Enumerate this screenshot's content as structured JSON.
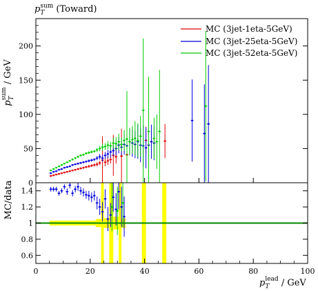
{
  "title_main": "p",
  "title_sub": "T",
  "title_sup": "sum",
  "title_suffix": " (Toward)",
  "colors": {
    "mc1": "#dd0000",
    "mc2": "#0000dd",
    "mc3": "#00cc00",
    "ratio_band": "#ffff00",
    "ratio_line": "#008800"
  },
  "chart_data": [
    {
      "type": "scatter",
      "ylabel_main": "p",
      "ylabel_sub": "T",
      "ylabel_sup": "sum",
      "ylabel_unit": " / GeV",
      "xlim": [
        0,
        100
      ],
      "ylim": [
        0,
        240
      ],
      "yticks": [
        0,
        50,
        100,
        150,
        200
      ],
      "legend_position": "top-right",
      "series": [
        {
          "name": "MC (3jet-1eta-5GeV)",
          "color": "#dd0000",
          "points": [
            {
              "x": 5.5,
              "y": 10,
              "err": 1
            },
            {
              "x": 6.5,
              "y": 11,
              "err": 1
            },
            {
              "x": 7.5,
              "y": 12,
              "err": 1
            },
            {
              "x": 8.5,
              "y": 13,
              "err": 1
            },
            {
              "x": 9.5,
              "y": 14,
              "err": 1
            },
            {
              "x": 10.5,
              "y": 15,
              "err": 1
            },
            {
              "x": 11.5,
              "y": 16,
              "err": 1
            },
            {
              "x": 12.5,
              "y": 17,
              "err": 1
            },
            {
              "x": 13.5,
              "y": 18,
              "err": 1
            },
            {
              "x": 14.5,
              "y": 19,
              "err": 1
            },
            {
              "x": 15.5,
              "y": 20,
              "err": 1.5
            },
            {
              "x": 16.5,
              "y": 21,
              "err": 1.5
            },
            {
              "x": 17.5,
              "y": 22,
              "err": 1.5
            },
            {
              "x": 18.5,
              "y": 23,
              "err": 1.5
            },
            {
              "x": 19.5,
              "y": 24,
              "err": 2
            },
            {
              "x": 20.5,
              "y": 25,
              "err": 2
            },
            {
              "x": 21.5,
              "y": 26,
              "err": 2
            },
            {
              "x": 22.5,
              "y": 27,
              "err": 3
            },
            {
              "x": 23.5,
              "y": 29,
              "err": 3
            },
            {
              "x": 24.5,
              "y": 33,
              "err": 35
            },
            {
              "x": 25.5,
              "y": 30,
              "err": 6
            },
            {
              "x": 26.5,
              "y": 32,
              "err": 6
            },
            {
              "x": 27.5,
              "y": 34,
              "err": 6
            },
            {
              "x": 28.5,
              "y": 40,
              "err": 30
            },
            {
              "x": 29.5,
              "y": 38,
              "err": 10
            },
            {
              "x": 31.5,
              "y": 39,
              "err": 40
            },
            {
              "x": 33.5,
              "y": 41,
              "err": 12
            },
            {
              "x": 40.5,
              "y": 62,
              "err": 20
            },
            {
              "x": 47.5,
              "y": 61,
              "err": 25
            }
          ]
        },
        {
          "name": "MC (3jet-25eta-5GeV)",
          "color": "#0000dd",
          "points": [
            {
              "x": 5.5,
              "y": 14,
              "err": 1
            },
            {
              "x": 6.5,
              "y": 16,
              "err": 1
            },
            {
              "x": 7.5,
              "y": 17,
              "err": 1
            },
            {
              "x": 8.5,
              "y": 19,
              "err": 1
            },
            {
              "x": 9.5,
              "y": 20,
              "err": 1
            },
            {
              "x": 10.5,
              "y": 22,
              "err": 1
            },
            {
              "x": 11.5,
              "y": 23,
              "err": 1
            },
            {
              "x": 12.5,
              "y": 24,
              "err": 1
            },
            {
              "x": 13.5,
              "y": 26,
              "err": 1
            },
            {
              "x": 14.5,
              "y": 27,
              "err": 1
            },
            {
              "x": 15.5,
              "y": 28,
              "err": 1.5
            },
            {
              "x": 16.5,
              "y": 29,
              "err": 1.5
            },
            {
              "x": 17.5,
              "y": 30,
              "err": 1.5
            },
            {
              "x": 18.5,
              "y": 31,
              "err": 1.5
            },
            {
              "x": 19.5,
              "y": 32,
              "err": 2
            },
            {
              "x": 20.5,
              "y": 33,
              "err": 2
            },
            {
              "x": 21.5,
              "y": 34,
              "err": 2
            },
            {
              "x": 22.5,
              "y": 36,
              "err": 3
            },
            {
              "x": 23.5,
              "y": 38,
              "err": 4
            },
            {
              "x": 24.5,
              "y": 36,
              "err": 5
            },
            {
              "x": 25.5,
              "y": 40,
              "err": 5
            },
            {
              "x": 26.5,
              "y": 42,
              "err": 6
            },
            {
              "x": 27.5,
              "y": 45,
              "err": 8
            },
            {
              "x": 28.5,
              "y": 47,
              "err": 8
            },
            {
              "x": 29.5,
              "y": 50,
              "err": 10
            },
            {
              "x": 30.5,
              "y": 55,
              "err": 12
            },
            {
              "x": 31.5,
              "y": 52,
              "err": 12
            },
            {
              "x": 32.5,
              "y": 56,
              "err": 15
            },
            {
              "x": 33.5,
              "y": 54,
              "err": 15
            },
            {
              "x": 34.5,
              "y": 60,
              "err": 20
            },
            {
              "x": 35.5,
              "y": 58,
              "err": 20
            },
            {
              "x": 36.5,
              "y": 56,
              "err": 20
            },
            {
              "x": 37.5,
              "y": 60,
              "err": 25
            },
            {
              "x": 38.5,
              "y": 55,
              "err": 25
            },
            {
              "x": 39.5,
              "y": 54,
              "err": 30
            },
            {
              "x": 40.5,
              "y": 51,
              "err": 30
            },
            {
              "x": 41.5,
              "y": 55,
              "err": 20
            },
            {
              "x": 42.5,
              "y": 60,
              "err": 25
            },
            {
              "x": 43.5,
              "y": 58,
              "err": 25
            },
            {
              "x": 57.5,
              "y": 91,
              "err": 60
            },
            {
              "x": 62.0,
              "y": 72,
              "err": 72
            },
            {
              "x": 63.5,
              "y": 86,
              "err": 86
            }
          ]
        },
        {
          "name": "MC (3jet-52eta-5GeV)",
          "color": "#00cc00",
          "points": [
            {
              "x": 5.5,
              "y": 18,
              "err": 1
            },
            {
              "x": 6.5,
              "y": 20,
              "err": 1
            },
            {
              "x": 7.5,
              "y": 22,
              "err": 1
            },
            {
              "x": 8.5,
              "y": 24,
              "err": 1
            },
            {
              "x": 9.5,
              "y": 26,
              "err": 1
            },
            {
              "x": 10.5,
              "y": 28,
              "err": 1
            },
            {
              "x": 11.5,
              "y": 30,
              "err": 1
            },
            {
              "x": 12.5,
              "y": 32,
              "err": 1
            },
            {
              "x": 13.5,
              "y": 34,
              "err": 1
            },
            {
              "x": 14.5,
              "y": 36,
              "err": 1
            },
            {
              "x": 15.5,
              "y": 38,
              "err": 1.5
            },
            {
              "x": 16.5,
              "y": 40,
              "err": 1.5
            },
            {
              "x": 17.5,
              "y": 41,
              "err": 1.5
            },
            {
              "x": 18.5,
              "y": 43,
              "err": 1.5
            },
            {
              "x": 19.5,
              "y": 44,
              "err": 2
            },
            {
              "x": 20.5,
              "y": 45,
              "err": 2
            },
            {
              "x": 21.5,
              "y": 46,
              "err": 2
            },
            {
              "x": 22.5,
              "y": 48,
              "err": 3
            },
            {
              "x": 23.5,
              "y": 50,
              "err": 4
            },
            {
              "x": 24.5,
              "y": 52,
              "err": 5
            },
            {
              "x": 25.5,
              "y": 53,
              "err": 5
            },
            {
              "x": 26.5,
              "y": 55,
              "err": 6
            },
            {
              "x": 27.5,
              "y": 54,
              "err": 6
            },
            {
              "x": 28.5,
              "y": 58,
              "err": 8
            },
            {
              "x": 29.5,
              "y": 57,
              "err": 10
            },
            {
              "x": 30.5,
              "y": 60,
              "err": 12
            },
            {
              "x": 31.5,
              "y": 56,
              "err": 10
            },
            {
              "x": 32.5,
              "y": 62,
              "err": 15
            },
            {
              "x": 33.5,
              "y": 64,
              "err": 70
            },
            {
              "x": 34.5,
              "y": 60,
              "err": 20
            },
            {
              "x": 35.5,
              "y": 63,
              "err": 20
            },
            {
              "x": 36.5,
              "y": 65,
              "err": 25
            },
            {
              "x": 37.5,
              "y": 62,
              "err": 25
            },
            {
              "x": 38.5,
              "y": 68,
              "err": 30
            },
            {
              "x": 39.5,
              "y": 106,
              "err": 105
            },
            {
              "x": 41.5,
              "y": 75,
              "err": 80
            },
            {
              "x": 43.5,
              "y": 65,
              "err": 30
            },
            {
              "x": 44.5,
              "y": 60,
              "err": 40
            },
            {
              "x": 45.5,
              "y": 75,
              "err": 90
            },
            {
              "x": 62.5,
              "y": 112,
              "err": 110
            }
          ]
        }
      ]
    },
    {
      "type": "scatter",
      "ylabel": "MC/data",
      "xlabel_main": "p",
      "xlabel_sub": "T",
      "xlabel_sup": "lead",
      "xlabel_unit": " / GeV",
      "xlim": [
        0,
        100
      ],
      "ylim": [
        0.5,
        1.5
      ],
      "xticks": [
        0,
        20,
        40,
        60,
        80,
        100
      ],
      "yticks": [
        0.6,
        0.8,
        1,
        1.2,
        1.4
      ],
      "ytick_labels": [
        "0.6",
        "0.8",
        "1",
        "1.2",
        "1.4"
      ],
      "reference_value": 1,
      "data_uncertainty_band": [
        {
          "x0": 5,
          "x1": 22,
          "half": 0.03
        },
        {
          "x0": 22,
          "x1": 24,
          "half": 0.05
        },
        {
          "x0": 24,
          "x1": 25,
          "half": 0.6
        },
        {
          "x0": 25,
          "x1": 27,
          "half": 0.06
        },
        {
          "x0": 27,
          "x1": 28.5,
          "half": 0.6
        },
        {
          "x0": 28.5,
          "x1": 30.5,
          "half": 0.08
        },
        {
          "x0": 30.5,
          "x1": 31.5,
          "half": 0.6
        },
        {
          "x0": 31.5,
          "x1": 33,
          "half": 0.06
        },
        {
          "x0": 39,
          "x1": 40.5,
          "half": 0.6
        },
        {
          "x0": 46.5,
          "x1": 48,
          "half": 0.6
        }
      ],
      "series": [
        {
          "name": "MC (3jet-25eta-5GeV)",
          "color": "#0000dd",
          "points": [
            {
              "x": 5.5,
              "y": 1.42,
              "err": 0.03
            },
            {
              "x": 6.5,
              "y": 1.42,
              "err": 0.03
            },
            {
              "x": 7.5,
              "y": 1.42,
              "err": 0.03
            },
            {
              "x": 8.5,
              "y": 1.37,
              "err": 0.03
            },
            {
              "x": 9.5,
              "y": 1.4,
              "err": 0.03
            },
            {
              "x": 10.5,
              "y": 1.45,
              "err": 0.03
            },
            {
              "x": 11.5,
              "y": 1.39,
              "err": 0.04
            },
            {
              "x": 12.5,
              "y": 1.47,
              "err": 0.04
            },
            {
              "x": 13.5,
              "y": 1.37,
              "err": 0.04
            },
            {
              "x": 14.5,
              "y": 1.42,
              "err": 0.04
            },
            {
              "x": 15.5,
              "y": 1.45,
              "err": 0.05
            },
            {
              "x": 16.5,
              "y": 1.4,
              "err": 0.05
            },
            {
              "x": 17.5,
              "y": 1.38,
              "err": 0.05
            },
            {
              "x": 18.5,
              "y": 1.35,
              "err": 0.05
            },
            {
              "x": 19.5,
              "y": 1.34,
              "err": 0.06
            },
            {
              "x": 20.5,
              "y": 1.32,
              "err": 0.06
            },
            {
              "x": 21.5,
              "y": 1.34,
              "err": 0.06
            },
            {
              "x": 22.5,
              "y": 1.25,
              "err": 0.08
            },
            {
              "x": 23.5,
              "y": 1.2,
              "err": 0.1
            },
            {
              "x": 24.5,
              "y": 1.14,
              "err": 0.12
            },
            {
              "x": 25.5,
              "y": 1.3,
              "err": 0.12
            },
            {
              "x": 26.5,
              "y": 1.05,
              "err": 0.15
            },
            {
              "x": 27.5,
              "y": 1.1,
              "err": 0.15
            },
            {
              "x": 28.5,
              "y": 1.32,
              "err": 0.18
            },
            {
              "x": 29.5,
              "y": 1.17,
              "err": 0.2
            },
            {
              "x": 30.5,
              "y": 1.39,
              "err": 0.22
            },
            {
              "x": 31.5,
              "y": 1.2,
              "err": 0.25
            },
            {
              "x": 32.5,
              "y": 1.08,
              "err": 0.25
            }
          ]
        },
        {
          "name": "MC (3jet-52eta-5GeV)",
          "color": "#00cc00",
          "points": [
            {
              "x": 28.0,
              "y": 1.2,
              "err": 0.3
            },
            {
              "x": 30.0,
              "y": 1.15,
              "err": 0.3
            },
            {
              "x": 32.0,
              "y": 1.25,
              "err": 0.3
            }
          ]
        }
      ]
    }
  ]
}
